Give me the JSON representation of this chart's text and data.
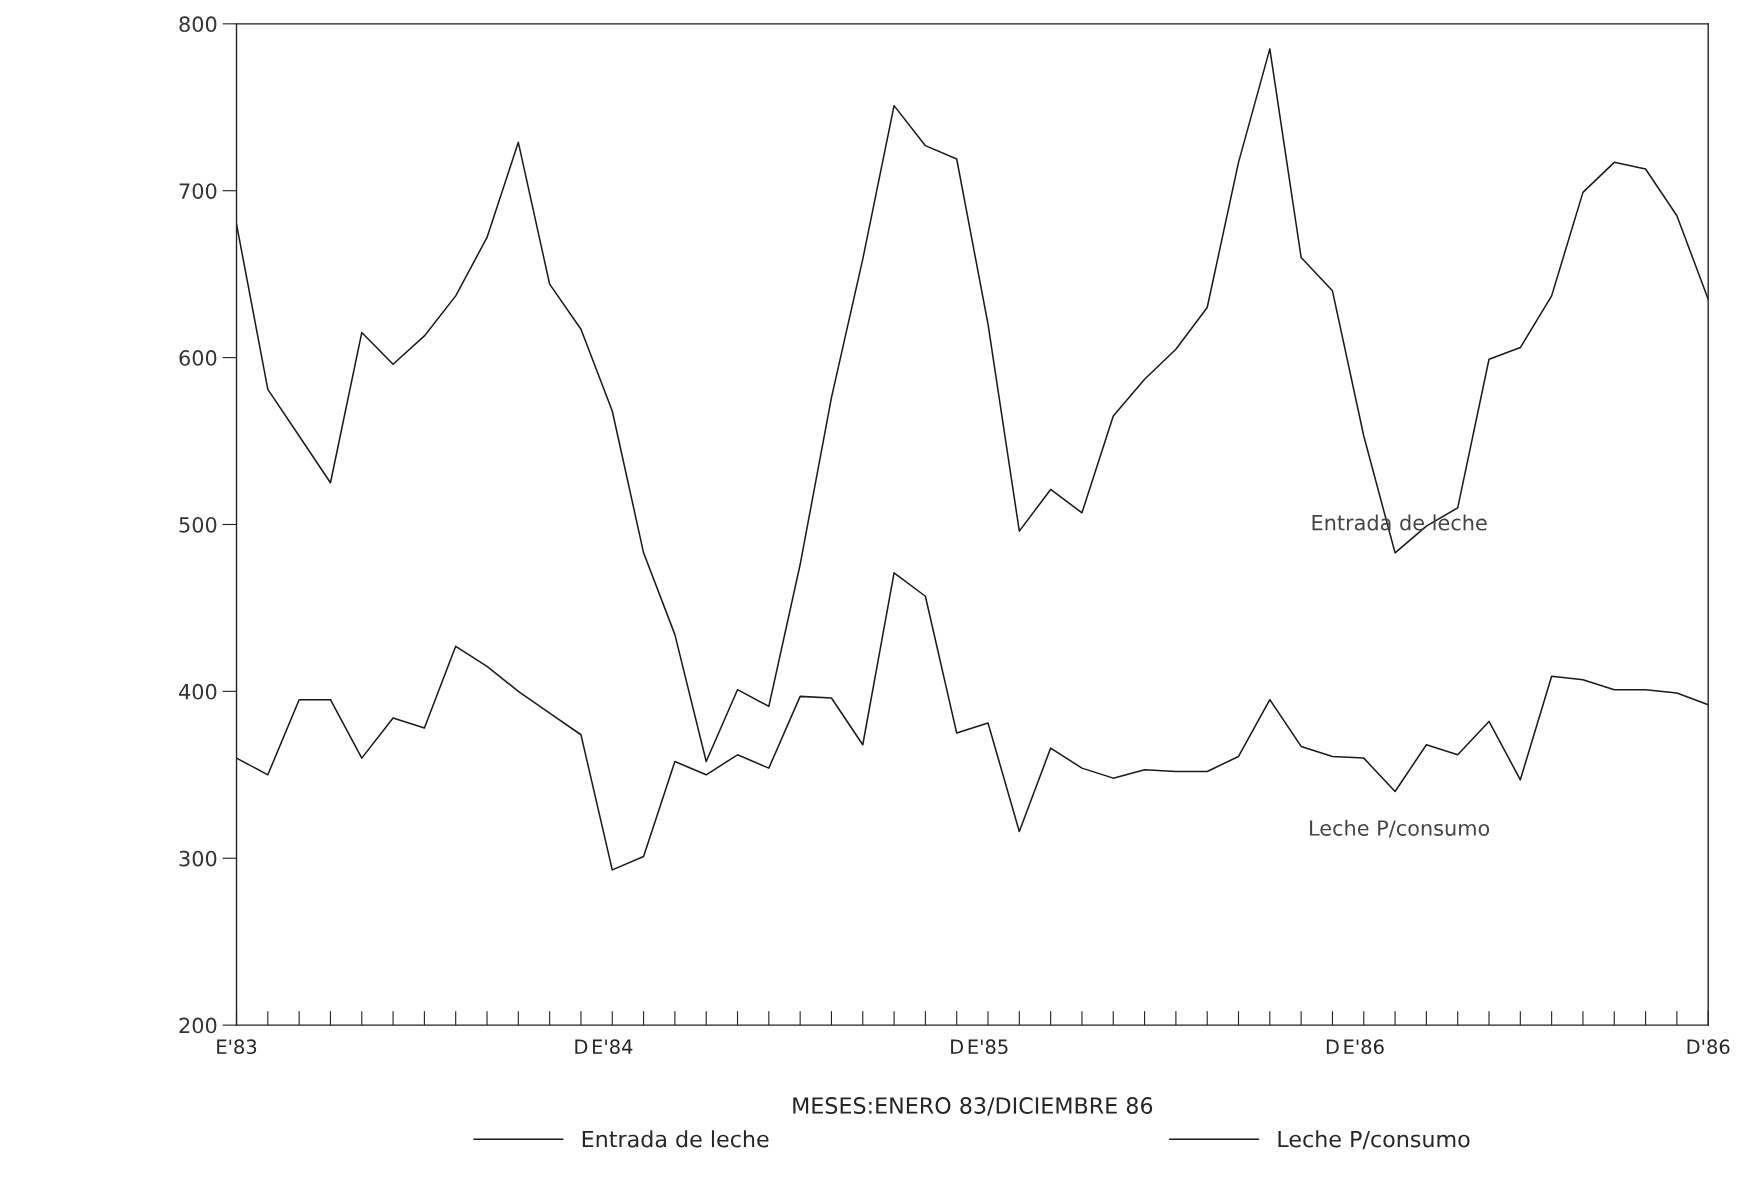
{
  "chart_data": {
    "type": "line",
    "xlabel": "MESES:ENERO 83/DICIEMBRE 86",
    "categories": [
      "E'83",
      null,
      null,
      null,
      null,
      null,
      null,
      null,
      null,
      null,
      null,
      "D",
      "E'84",
      null,
      null,
      null,
      null,
      null,
      null,
      null,
      null,
      null,
      null,
      "D",
      "E'85",
      null,
      null,
      null,
      null,
      null,
      null,
      null,
      null,
      null,
      null,
      "D",
      "E'86",
      null,
      null,
      null,
      null,
      null,
      null,
      null,
      null,
      null,
      null,
      "D'86"
    ],
    "series": [
      {
        "name": "Entrada de leche",
        "color": "#1a1a1a",
        "line_style": "solid",
        "values": [
          680,
          581,
          553,
          525,
          615,
          596,
          613,
          637,
          672,
          729,
          644,
          617,
          568,
          483,
          434,
          358,
          401,
          391,
          476,
          576,
          659,
          751,
          727,
          719,
          620,
          496,
          521,
          507,
          565,
          587,
          605,
          630,
          717,
          785,
          660,
          640,
          553,
          483,
          499,
          510,
          599,
          606,
          637,
          699,
          717,
          713,
          685,
          635
        ]
      },
      {
        "name": "Leche P/consumo",
        "color": "#1a1a1a",
        "line_style": "solid",
        "values": [
          360,
          350,
          395,
          395,
          360,
          384,
          378,
          427,
          415,
          400,
          387,
          374,
          293,
          301,
          358,
          350,
          362,
          354,
          397,
          396,
          368,
          471,
          457,
          375,
          381,
          316,
          366,
          354,
          348,
          353,
          352,
          352,
          361,
          395,
          367,
          361,
          360,
          340,
          368,
          362,
          382,
          347,
          409,
          407,
          401,
          401,
          399,
          392
        ]
      }
    ],
    "ylim": [
      200,
      800
    ],
    "yticks": [
      200,
      300,
      400,
      500,
      600,
      700,
      800
    ],
    "annotations": [
      "Entrada de leche",
      "Leche P/consumo"
    ],
    "grid": false,
    "legend": "bottom",
    "marker": "none"
  }
}
